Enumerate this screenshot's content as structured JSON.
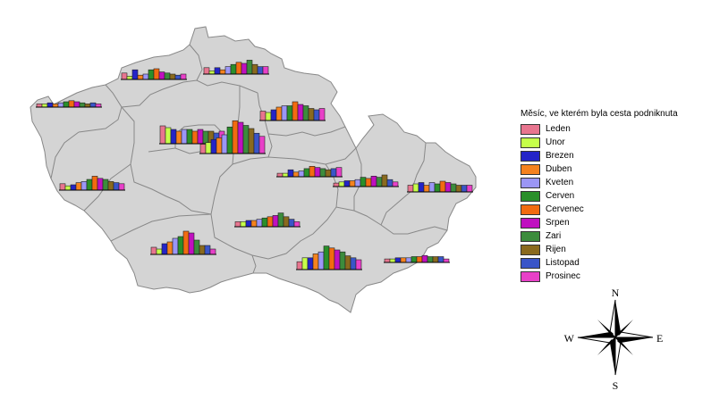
{
  "legend": {
    "title": "Měsíc, ve kterém byla cesta podniknuta",
    "items": [
      {
        "label": "Leden",
        "color": "#e8758f"
      },
      {
        "label": "Unor",
        "color": "#c6ff4a"
      },
      {
        "label": "Brezen",
        "color": "#2424c8"
      },
      {
        "label": "Duben",
        "color": "#f5821e"
      },
      {
        "label": "Kveten",
        "color": "#9b96f5"
      },
      {
        "label": "Cerven",
        "color": "#2a8f2a"
      },
      {
        "label": "Cervenec",
        "color": "#f26b10"
      },
      {
        "label": "Srpen",
        "color": "#c010c0"
      },
      {
        "label": "Zari",
        "color": "#3c8c3c"
      },
      {
        "label": "Rijen",
        "color": "#8a6a1e"
      },
      {
        "label": "Listopad",
        "color": "#3a55c8"
      },
      {
        "label": "Prosinec",
        "color": "#e840c8"
      }
    ]
  },
  "compass": {
    "n": "N",
    "s": "S",
    "e": "E",
    "w": "W"
  },
  "map": {
    "fill": "#d4d4d4",
    "stroke": "#888888"
  },
  "regions": [
    {
      "name": "karlovarsky",
      "values": [
        3,
        3,
        4,
        3,
        4,
        5,
        6,
        5,
        4,
        3,
        4,
        3
      ]
    },
    {
      "name": "ustecky",
      "values": [
        6,
        3,
        9,
        4,
        5,
        9,
        10,
        7,
        6,
        5,
        4,
        5
      ]
    },
    {
      "name": "liberecky",
      "values": [
        6,
        3,
        6,
        4,
        7,
        9,
        11,
        10,
        13,
        9,
        7,
        7
      ]
    },
    {
      "name": "kralovehradecky",
      "values": [
        7,
        6,
        8,
        10,
        11,
        11,
        14,
        12,
        11,
        9,
        8,
        9
      ]
    },
    {
      "name": "praha",
      "values": [
        10,
        9,
        8,
        7,
        8,
        8,
        7,
        8,
        7,
        7,
        6,
        7
      ]
    },
    {
      "name": "stredocesky",
      "values": [
        6,
        7,
        9,
        10,
        12,
        17,
        21,
        20,
        18,
        16,
        13,
        11
      ]
    },
    {
      "name": "plzensky",
      "values": [
        6,
        4,
        5,
        7,
        8,
        10,
        13,
        11,
        10,
        8,
        7,
        6
      ]
    },
    {
      "name": "pardubicky",
      "values": [
        3,
        3,
        6,
        4,
        5,
        7,
        9,
        8,
        7,
        6,
        7,
        8
      ]
    },
    {
      "name": "olomoucky",
      "values": [
        3,
        4,
        5,
        5,
        6,
        8,
        7,
        9,
        8,
        10,
        6,
        4
      ]
    },
    {
      "name": "moravskoslezsky",
      "values": [
        5,
        6,
        7,
        5,
        7,
        6,
        8,
        7,
        6,
        5,
        5,
        5
      ]
    },
    {
      "name": "vysocina",
      "values": [
        4,
        4,
        5,
        5,
        6,
        7,
        8,
        9,
        11,
        8,
        6,
        4
      ]
    },
    {
      "name": "jihocesky",
      "values": [
        4,
        3,
        6,
        7,
        9,
        10,
        13,
        12,
        8,
        5,
        5,
        3
      ]
    },
    {
      "name": "jihomoravsky",
      "values": [
        4,
        6,
        6,
        8,
        9,
        12,
        11,
        10,
        9,
        7,
        6,
        5
      ]
    },
    {
      "name": "zlinsky",
      "values": [
        3,
        3,
        4,
        4,
        4,
        5,
        5,
        6,
        5,
        5,
        5,
        3
      ]
    }
  ]
}
